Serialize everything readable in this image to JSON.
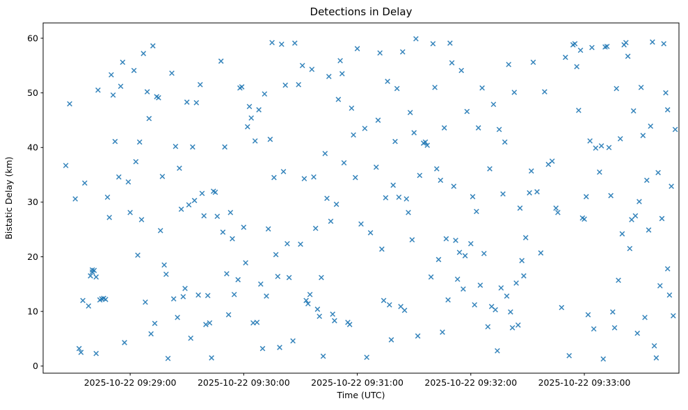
{
  "chart_data": {
    "type": "scatter",
    "title": "Detections in Delay",
    "xlabel": "Time (UTC)",
    "ylabel": "Bistatic Delay (km)",
    "marker": "x",
    "marker_color": "#1f77b4",
    "grid": false,
    "legend": "none",
    "x_unit": "seconds after 2025-10-22 09:28:00 UTC",
    "xlim_seconds": [
      14,
      350
    ],
    "ylim": [
      -1.3,
      62.8
    ],
    "x_tick_seconds": [
      60,
      120,
      180,
      240,
      300
    ],
    "x_tick_labels": [
      "2025-10-22 09:29:00",
      "2025-10-22 09:30:00",
      "2025-10-22 09:31:00",
      "2025-10-22 09:32:00",
      "2025-10-22 09:33:00"
    ],
    "y_ticks": [
      0,
      10,
      20,
      30,
      40,
      50,
      60
    ],
    "points": [
      [
        26,
        36.7
      ],
      [
        28,
        48.0
      ],
      [
        31,
        30.6
      ],
      [
        33,
        3.2
      ],
      [
        34,
        2.5
      ],
      [
        35,
        12.0
      ],
      [
        36,
        33.5
      ],
      [
        38,
        11.0
      ],
      [
        39,
        16.5
      ],
      [
        40,
        17.6
      ],
      [
        40,
        17.2
      ],
      [
        41,
        17.5
      ],
      [
        42,
        16.3
      ],
      [
        42,
        2.3
      ],
      [
        43,
        50.5
      ],
      [
        44,
        12.1
      ],
      [
        45,
        12.3
      ],
      [
        46,
        12.4
      ],
      [
        47,
        12.2
      ],
      [
        48,
        30.9
      ],
      [
        49,
        27.2
      ],
      [
        50,
        53.3
      ],
      [
        51,
        49.6
      ],
      [
        52,
        41.1
      ],
      [
        54,
        34.6
      ],
      [
        55,
        51.2
      ],
      [
        56,
        55.6
      ],
      [
        57,
        4.3
      ],
      [
        59,
        33.7
      ],
      [
        60,
        28.1
      ],
      [
        62,
        54.1
      ],
      [
        63,
        37.4
      ],
      [
        64,
        20.3
      ],
      [
        65,
        41.0
      ],
      [
        66,
        26.8
      ],
      [
        67,
        57.2
      ],
      [
        68,
        11.7
      ],
      [
        69,
        50.2
      ],
      [
        70,
        45.3
      ],
      [
        71,
        5.9
      ],
      [
        72,
        58.6
      ],
      [
        73,
        7.8
      ],
      [
        74,
        49.3
      ],
      [
        75,
        49.1
      ],
      [
        76,
        24.8
      ],
      [
        77,
        34.7
      ],
      [
        78,
        18.5
      ],
      [
        79,
        16.8
      ],
      [
        80,
        1.4
      ],
      [
        82,
        53.6
      ],
      [
        83,
        12.3
      ],
      [
        84,
        40.2
      ],
      [
        85,
        8.9
      ],
      [
        86,
        36.2
      ],
      [
        87,
        28.7
      ],
      [
        88,
        12.7
      ],
      [
        89,
        14.2
      ],
      [
        90,
        48.3
      ],
      [
        91,
        29.5
      ],
      [
        92,
        5.1
      ],
      [
        93,
        40.1
      ],
      [
        94,
        30.3
      ],
      [
        95,
        48.2
      ],
      [
        96,
        13.0
      ],
      [
        97,
        51.5
      ],
      [
        98,
        31.6
      ],
      [
        99,
        27.5
      ],
      [
        100,
        7.6
      ],
      [
        101,
        12.9
      ],
      [
        102,
        7.9
      ],
      [
        103,
        1.5
      ],
      [
        104,
        32.0
      ],
      [
        105,
        31.8
      ],
      [
        106,
        27.4
      ],
      [
        108,
        55.8
      ],
      [
        109,
        24.5
      ],
      [
        110,
        40.1
      ],
      [
        111,
        16.9
      ],
      [
        112,
        9.4
      ],
      [
        113,
        28.1
      ],
      [
        114,
        23.3
      ],
      [
        115,
        13.1
      ],
      [
        117,
        15.8
      ],
      [
        118,
        50.9
      ],
      [
        119,
        51.1
      ],
      [
        120,
        25.4
      ],
      [
        121,
        18.9
      ],
      [
        122,
        43.8
      ],
      [
        123,
        47.5
      ],
      [
        124,
        45.4
      ],
      [
        125,
        7.9
      ],
      [
        126,
        41.2
      ],
      [
        127,
        8.0
      ],
      [
        128,
        46.9
      ],
      [
        129,
        15.0
      ],
      [
        130,
        3.2
      ],
      [
        131,
        49.8
      ],
      [
        132,
        12.8
      ],
      [
        133,
        25.1
      ],
      [
        134,
        41.5
      ],
      [
        135,
        59.2
      ],
      [
        136,
        34.5
      ],
      [
        137,
        20.4
      ],
      [
        138,
        16.4
      ],
      [
        139,
        3.4
      ],
      [
        140,
        58.9
      ],
      [
        141,
        35.6
      ],
      [
        142,
        51.4
      ],
      [
        143,
        22.4
      ],
      [
        144,
        16.2
      ],
      [
        146,
        4.6
      ],
      [
        147,
        59.1
      ],
      [
        149,
        51.5
      ],
      [
        150,
        22.3
      ],
      [
        151,
        55.0
      ],
      [
        152,
        34.3
      ],
      [
        153,
        12.0
      ],
      [
        154,
        11.4
      ],
      [
        155,
        13.1
      ],
      [
        156,
        54.3
      ],
      [
        157,
        34.6
      ],
      [
        158,
        25.2
      ],
      [
        159,
        10.4
      ],
      [
        160,
        9.1
      ],
      [
        161,
        16.2
      ],
      [
        162,
        1.8
      ],
      [
        163,
        38.9
      ],
      [
        164,
        30.7
      ],
      [
        165,
        53.0
      ],
      [
        166,
        26.5
      ],
      [
        167,
        9.5
      ],
      [
        168,
        8.3
      ],
      [
        169,
        29.6
      ],
      [
        170,
        48.8
      ],
      [
        171,
        55.9
      ],
      [
        172,
        53.5
      ],
      [
        173,
        37.2
      ],
      [
        175,
        8.0
      ],
      [
        176,
        7.6
      ],
      [
        177,
        47.2
      ],
      [
        178,
        42.3
      ],
      [
        179,
        34.5
      ],
      [
        180,
        58.1
      ],
      [
        182,
        26.0
      ],
      [
        184,
        43.5
      ],
      [
        185,
        1.6
      ],
      [
        187,
        24.4
      ],
      [
        190,
        36.4
      ],
      [
        191,
        45.0
      ],
      [
        192,
        57.3
      ],
      [
        193,
        21.4
      ],
      [
        194,
        12.0
      ],
      [
        195,
        30.8
      ],
      [
        196,
        52.1
      ],
      [
        197,
        11.2
      ],
      [
        198,
        4.8
      ],
      [
        199,
        33.1
      ],
      [
        200,
        41.1
      ],
      [
        201,
        50.8
      ],
      [
        202,
        30.9
      ],
      [
        203,
        10.9
      ],
      [
        204,
        57.5
      ],
      [
        205,
        10.2
      ],
      [
        206,
        30.6
      ],
      [
        207,
        28.1
      ],
      [
        208,
        46.4
      ],
      [
        209,
        23.1
      ],
      [
        210,
        42.7
      ],
      [
        211,
        59.9
      ],
      [
        212,
        5.5
      ],
      [
        213,
        34.9
      ],
      [
        215,
        40.8
      ],
      [
        216,
        41.0
      ],
      [
        217,
        40.4
      ],
      [
        219,
        16.3
      ],
      [
        220,
        59.0
      ],
      [
        221,
        51.0
      ],
      [
        222,
        36.1
      ],
      [
        223,
        19.5
      ],
      [
        224,
        34.0
      ],
      [
        225,
        6.2
      ],
      [
        226,
        43.6
      ],
      [
        227,
        23.3
      ],
      [
        228,
        12.1
      ],
      [
        229,
        59.1
      ],
      [
        230,
        55.5
      ],
      [
        231,
        32.9
      ],
      [
        232,
        23.0
      ],
      [
        233,
        15.9
      ],
      [
        234,
        20.8
      ],
      [
        235,
        54.1
      ],
      [
        236,
        14.1
      ],
      [
        237,
        20.2
      ],
      [
        238,
        46.6
      ],
      [
        240,
        22.4
      ],
      [
        241,
        31.0
      ],
      [
        242,
        11.2
      ],
      [
        243,
        28.3
      ],
      [
        244,
        43.6
      ],
      [
        245,
        14.8
      ],
      [
        246,
        50.9
      ],
      [
        247,
        20.6
      ],
      [
        249,
        7.2
      ],
      [
        250,
        36.1
      ],
      [
        251,
        10.9
      ],
      [
        252,
        47.9
      ],
      [
        253,
        10.3
      ],
      [
        254,
        2.8
      ],
      [
        255,
        43.3
      ],
      [
        256,
        14.3
      ],
      [
        257,
        31.5
      ],
      [
        258,
        41.0
      ],
      [
        259,
        12.8
      ],
      [
        260,
        55.2
      ],
      [
        261,
        9.9
      ],
      [
        262,
        7.0
      ],
      [
        263,
        50.1
      ],
      [
        264,
        15.2
      ],
      [
        265,
        7.5
      ],
      [
        266,
        28.9
      ],
      [
        267,
        19.3
      ],
      [
        268,
        16.5
      ],
      [
        269,
        23.5
      ],
      [
        271,
        31.7
      ],
      [
        272,
        35.7
      ],
      [
        273,
        55.6
      ],
      [
        275,
        31.9
      ],
      [
        277,
        20.7
      ],
      [
        279,
        50.2
      ],
      [
        281,
        36.9
      ],
      [
        283,
        37.5
      ],
      [
        285,
        28.9
      ],
      [
        286,
        28.1
      ],
      [
        288,
        10.7
      ],
      [
        290,
        56.5
      ],
      [
        292,
        1.9
      ],
      [
        294,
        58.8
      ],
      [
        295,
        59.0
      ],
      [
        296,
        54.8
      ],
      [
        297,
        46.8
      ],
      [
        298,
        57.8
      ],
      [
        299,
        27.1
      ],
      [
        300,
        26.9
      ],
      [
        301,
        31.0
      ],
      [
        302,
        9.4
      ],
      [
        303,
        41.2
      ],
      [
        304,
        58.3
      ],
      [
        305,
        6.8
      ],
      [
        306,
        39.9
      ],
      [
        308,
        35.5
      ],
      [
        309,
        40.3
      ],
      [
        310,
        1.3
      ],
      [
        311,
        58.4
      ],
      [
        312,
        58.5
      ],
      [
        313,
        40.0
      ],
      [
        314,
        31.2
      ],
      [
        315,
        9.9
      ],
      [
        316,
        7.0
      ],
      [
        317,
        50.8
      ],
      [
        318,
        15.7
      ],
      [
        319,
        41.6
      ],
      [
        320,
        24.2
      ],
      [
        321,
        58.8
      ],
      [
        322,
        59.2
      ],
      [
        323,
        56.7
      ],
      [
        324,
        21.5
      ],
      [
        325,
        26.8
      ],
      [
        326,
        46.7
      ],
      [
        327,
        27.5
      ],
      [
        328,
        6.0
      ],
      [
        329,
        30.1
      ],
      [
        330,
        51.0
      ],
      [
        331,
        42.2
      ],
      [
        332,
        8.9
      ],
      [
        333,
        34.0
      ],
      [
        334,
        24.9
      ],
      [
        335,
        43.9
      ],
      [
        336,
        59.3
      ],
      [
        337,
        3.7
      ],
      [
        338,
        1.5
      ],
      [
        339,
        35.4
      ],
      [
        340,
        14.7
      ],
      [
        341,
        27.0
      ],
      [
        342,
        59.0
      ],
      [
        343,
        50.0
      ],
      [
        344,
        46.9
      ],
      [
        344,
        17.8
      ],
      [
        345,
        13.0
      ],
      [
        346,
        32.9
      ],
      [
        347,
        9.2
      ],
      [
        348,
        43.3
      ]
    ]
  }
}
